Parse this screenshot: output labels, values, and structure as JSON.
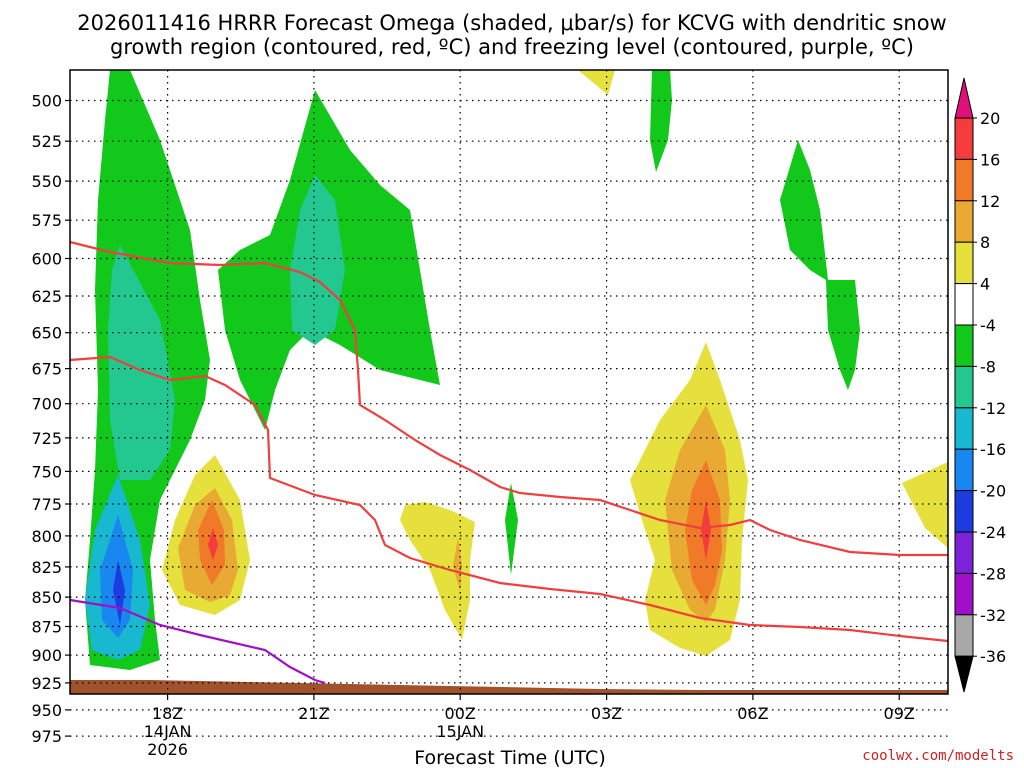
{
  "chart_data": {
    "type": "heatmap",
    "title_line1": "2026011416 HRRR Forecast Omega (shaded, μbar/s) for KCVG with dendritic snow",
    "title_line2": "growth region (contoured, red, ºC) and freezing level (contoured, purple, ºC)",
    "xlabel": "Forecast Time (UTC)",
    "credit": "coolwx.com/modelts",
    "y_ticks": [
      "500",
      "525",
      "550",
      "575",
      "600",
      "625",
      "650",
      "675",
      "700",
      "725",
      "750",
      "775",
      "800",
      "825",
      "850",
      "875",
      "900",
      "925",
      "950",
      "975"
    ],
    "x_ticks": [
      {
        "label": "18Z",
        "sub1": "14JAN",
        "sub2": "2026"
      },
      {
        "label": "21Z",
        "sub1": "",
        "sub2": ""
      },
      {
        "label": "00Z",
        "sub1": "15JAN",
        "sub2": ""
      },
      {
        "label": "03Z",
        "sub1": "",
        "sub2": ""
      },
      {
        "label": "06Z",
        "sub1": "",
        "sub2": ""
      },
      {
        "label": "09Z",
        "sub1": "",
        "sub2": ""
      }
    ],
    "y_range_mb": [
      476,
      980
    ],
    "x_range_hours_from_16Z": [
      0,
      18
    ],
    "grid": true,
    "colorbar_labels": [
      "20",
      "16",
      "12",
      "8",
      "4",
      "-4",
      "-8",
      "-12",
      "-16",
      "-20",
      "-24",
      "-28",
      "-32",
      "-36"
    ],
    "colorbar_colors": [
      "#f43c3c",
      "#f07a28",
      "#e8aa32",
      "#e6e03c",
      "#ffffff",
      "#12c81a",
      "#22c890",
      "#18b8d0",
      "#1888f0",
      "#1c3ce0",
      "#7c22d8",
      "#a010c8",
      "#a8a8a8"
    ],
    "colors": {
      "green": "#12c81a",
      "teal": "#22c890",
      "cyan": "#18b8d0",
      "blue": "#1888f0",
      "darkblue": "#1c3ce0",
      "yellow": "#e6e03c",
      "gold": "#e8aa32",
      "orange": "#f07a28",
      "red": "#f43c3c",
      "dgz_line": "#ee4040",
      "freezing_line": "#a010c8",
      "ground": "#a0522d",
      "arrow_top": "#e0107a"
    }
  }
}
